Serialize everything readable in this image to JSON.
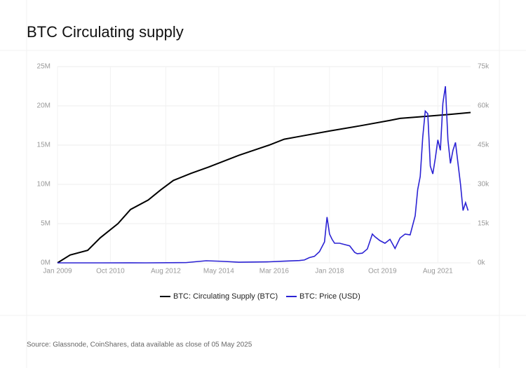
{
  "chart_data": {
    "type": "line",
    "title": "BTC Circulating supply",
    "source": "Source: Glassnode, CoinShares, data available as close of 05 May 2025",
    "xlim": [
      "2009-01",
      "2022-09"
    ],
    "xticks": [
      {
        "value": "2009-01",
        "label": "Jan 2009"
      },
      {
        "value": "2010-10",
        "label": "Oct 2010"
      },
      {
        "value": "2012-08",
        "label": "Aug 2012"
      },
      {
        "value": "2014-05",
        "label": "May 2014"
      },
      {
        "value": "2016-03",
        "label": "Mar 2016"
      },
      {
        "value": "2018-01",
        "label": "Jan 2018"
      },
      {
        "value": "2019-10",
        "label": "Oct 2019"
      },
      {
        "value": "2021-08",
        "label": "Aug 2021"
      }
    ],
    "ylim": [
      0,
      25000000
    ],
    "yticks": [
      {
        "value": 0,
        "label": "0M"
      },
      {
        "value": 5000000,
        "label": "5M"
      },
      {
        "value": 10000000,
        "label": "10M"
      },
      {
        "value": 15000000,
        "label": "15M"
      },
      {
        "value": 20000000,
        "label": "20M"
      },
      {
        "value": 25000000,
        "label": "25M"
      }
    ],
    "y2lim": [
      0,
      75000
    ],
    "y2ticks": [
      {
        "value": 0,
        "label": "0k"
      },
      {
        "value": 15000,
        "label": "15k"
      },
      {
        "value": 30000,
        "label": "30k"
      },
      {
        "value": 45000,
        "label": "45k"
      },
      {
        "value": 60000,
        "label": "60k"
      },
      {
        "value": 75000,
        "label": "75k"
      }
    ],
    "grid": true,
    "series": [
      {
        "name": "BTC: Circulating Supply (BTC)",
        "color": "#000000",
        "x": [
          "2009-01",
          "2009-06",
          "2010-01",
          "2010-06",
          "2011-01",
          "2011-06",
          "2012-01",
          "2012-06",
          "2012-11",
          "2013-06",
          "2014-01",
          "2015-01",
          "2016-01",
          "2016-07",
          "2017-01",
          "2018-01",
          "2019-01",
          "2020-01",
          "2020-05",
          "2021-01",
          "2022-01",
          "2022-09"
        ],
        "values": [
          0,
          1000000,
          1600000,
          3200000,
          5000000,
          6800000,
          8000000,
          9300000,
          10500000,
          11400000,
          12200000,
          13700000,
          15000000,
          15750000,
          16100000,
          16800000,
          17450000,
          18150000,
          18400000,
          18600000,
          18920000,
          19150000
        ]
      },
      {
        "name": "BTC: Price (USD)",
        "color": "#2b22d4",
        "axis": "y2",
        "x": [
          "2009-01",
          "2010-07",
          "2011-06",
          "2011-12",
          "2013-04",
          "2013-12",
          "2014-06",
          "2015-01",
          "2016-01",
          "2016-07",
          "2017-01",
          "2017-03",
          "2017-05",
          "2017-07",
          "2017-09",
          "2017-11",
          "2017-12",
          "2018-01",
          "2018-02",
          "2018-03",
          "2018-05",
          "2018-07",
          "2018-09",
          "2018-11",
          "2018-12",
          "2019-02",
          "2019-04",
          "2019-06",
          "2019-07",
          "2019-09",
          "2019-11",
          "2020-01",
          "2020-03",
          "2020-05",
          "2020-07",
          "2020-09",
          "2020-11",
          "2020-12",
          "2021-01",
          "2021-02",
          "2021-03",
          "2021-04",
          "2021-05",
          "2021-06",
          "2021-07",
          "2021-08",
          "2021-09",
          "2021-10",
          "2021-11",
          "2021-12",
          "2022-01",
          "2022-02",
          "2022-03",
          "2022-04",
          "2022-05",
          "2022-06",
          "2022-07",
          "2022-08"
        ],
        "values": [
          0,
          0.07,
          17,
          3,
          100,
          800,
          600,
          250,
          400,
          650,
          900,
          1100,
          2000,
          2500,
          4300,
          8000,
          17500,
          11000,
          9000,
          7500,
          7500,
          7000,
          6500,
          4000,
          3500,
          3700,
          5300,
          11000,
          10000,
          8500,
          7500,
          9000,
          5500,
          9500,
          11000,
          10700,
          18000,
          28000,
          33000,
          48000,
          58000,
          57000,
          37000,
          34000,
          40000,
          47000,
          43000,
          61000,
          67500,
          47000,
          38000,
          43000,
          46000,
          38000,
          30000,
          20000,
          23000,
          20000
        ]
      }
    ]
  }
}
